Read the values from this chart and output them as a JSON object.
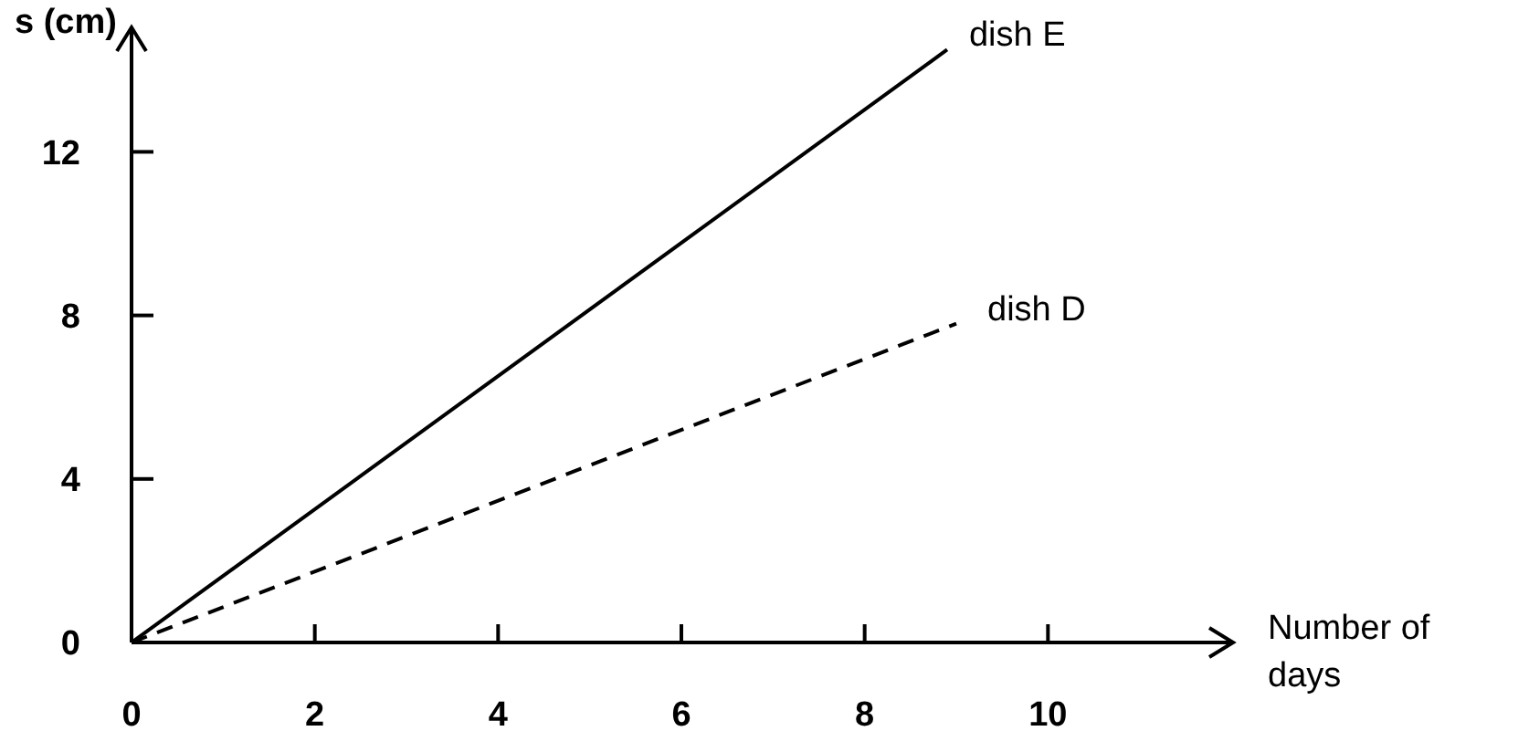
{
  "chart_data": {
    "type": "line",
    "ylabel": "s (cm)",
    "xlabel": "Number of days",
    "xlim": [
      0,
      12
    ],
    "ylim": [
      0,
      15
    ],
    "xticks": [
      0,
      2,
      4,
      6,
      8,
      10
    ],
    "yticks": [
      0,
      4,
      8,
      12
    ],
    "grid": false,
    "legend": false,
    "marker": "none",
    "series": [
      {
        "name": "dish E",
        "color": "#000000",
        "line_style": "solid",
        "x": [
          0,
          8.9
        ],
        "values": [
          0,
          14.5
        ]
      },
      {
        "name": "dish D",
        "color": "#000000",
        "line_style": "dashed",
        "x": [
          0,
          9
        ],
        "values": [
          0,
          7.8
        ]
      }
    ]
  }
}
